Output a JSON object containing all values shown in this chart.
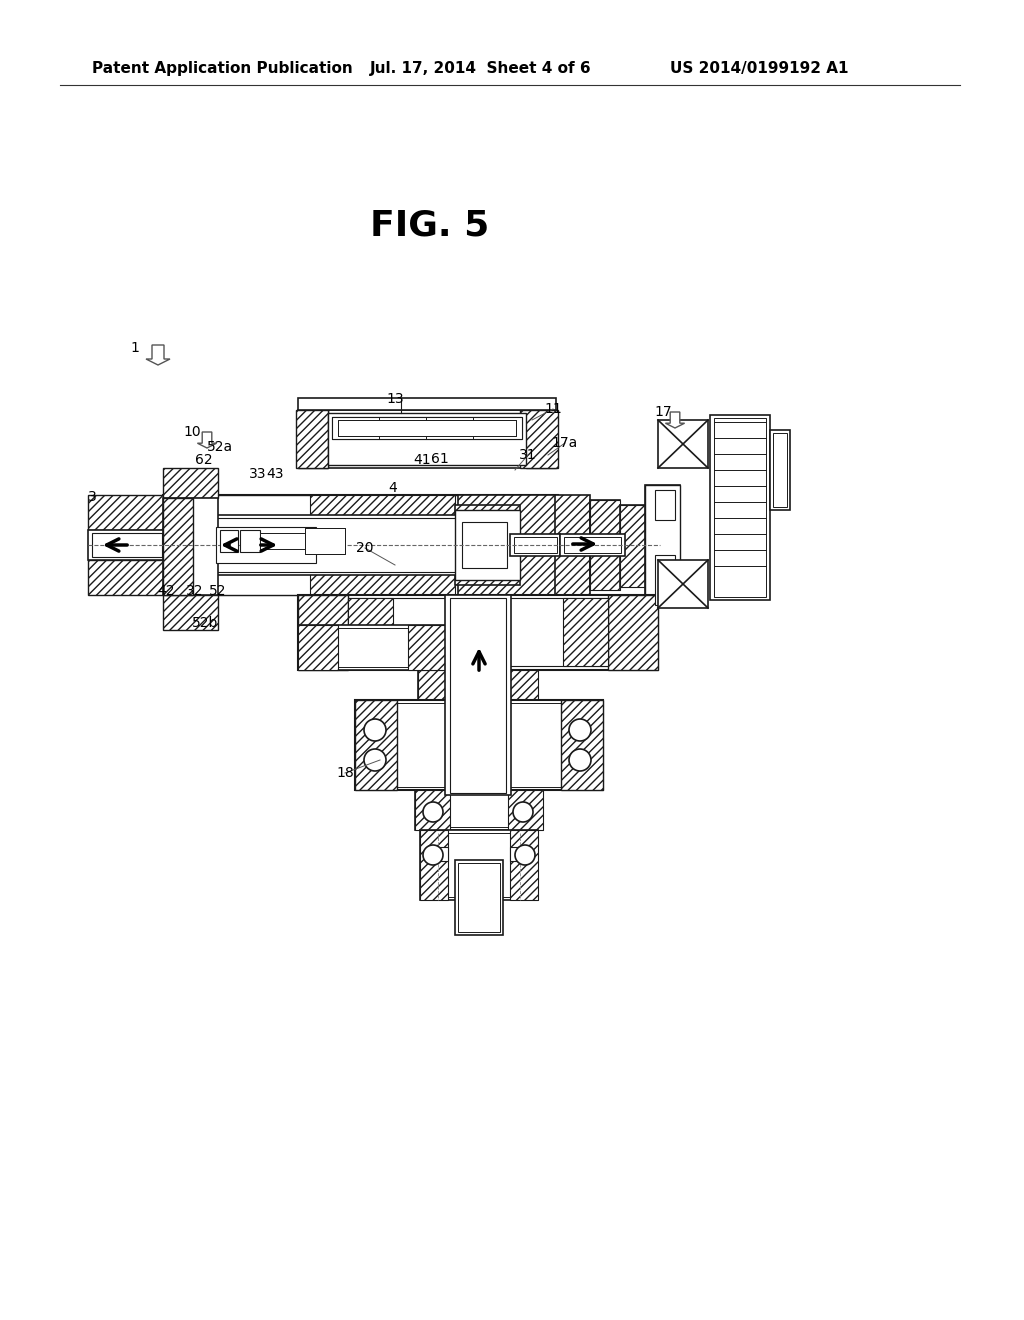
{
  "bg_color": "#ffffff",
  "lc": "#1a1a1a",
  "header_left": "Patent Application Publication",
  "header_mid": "Jul. 17, 2014  Sheet 4 of 6",
  "header_right": "US 2014/0199192 A1",
  "fig_title": "FIG. 5"
}
